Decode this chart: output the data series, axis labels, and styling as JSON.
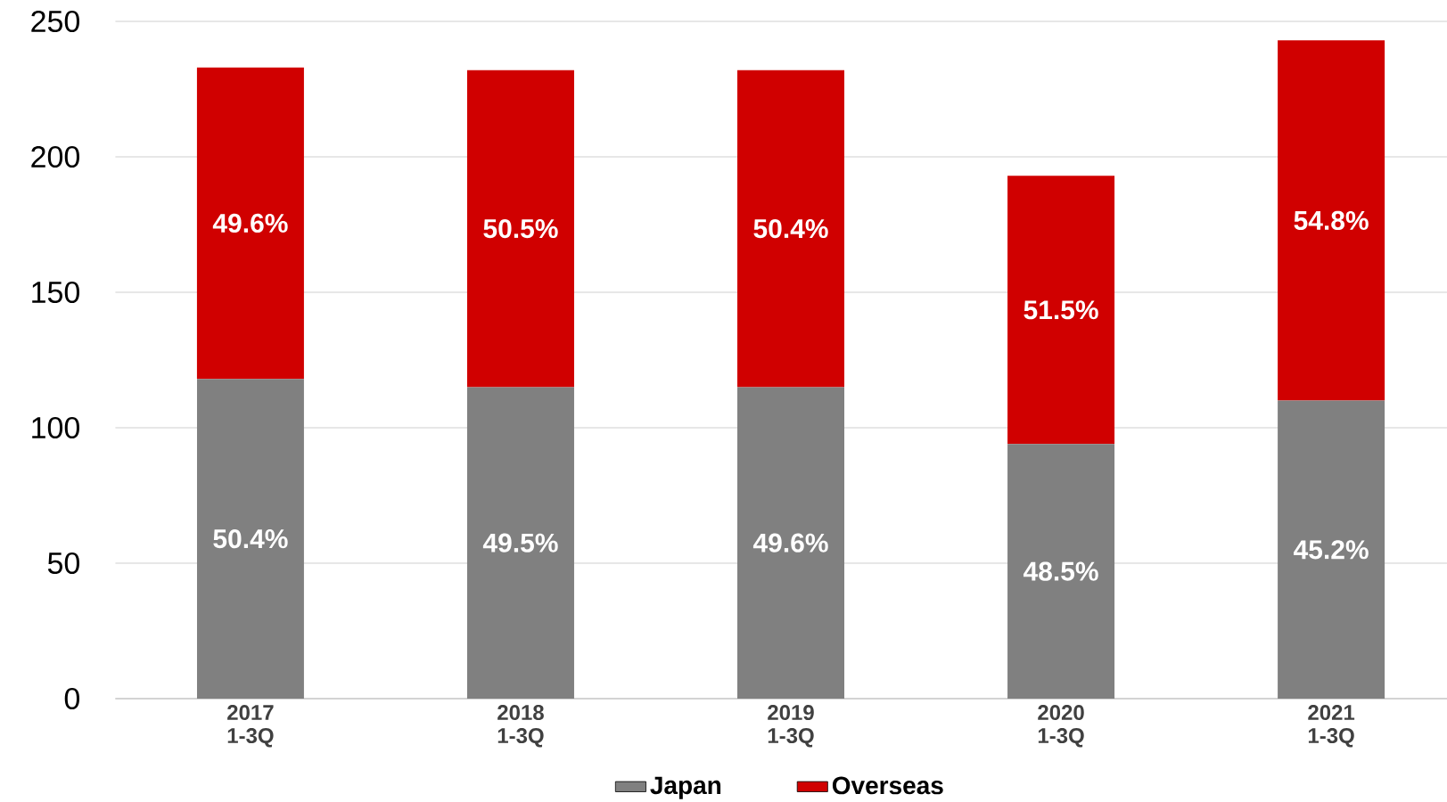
{
  "chart_data": {
    "type": "bar",
    "stacked": true,
    "categories": [
      "2017 1-3Q",
      "2018 1-3Q",
      "2019 1-3Q",
      "2020 1-3Q",
      "2021 1-3Q"
    ],
    "series": [
      {
        "name": "Japan",
        "color": "#808080",
        "values": [
          118,
          115,
          115,
          94,
          110
        ]
      },
      {
        "name": "Overseas",
        "color": "#d00000",
        "values": [
          115,
          117,
          117,
          99,
          133
        ]
      }
    ],
    "annotations": [
      "50.4%",
      "49.5%",
      "49.6%",
      "48.5%",
      "45.2%",
      "49.6%",
      "50.5%",
      "50.4%",
      "51.5%",
      "54.8%"
    ],
    "ylim": [
      0,
      250
    ],
    "yticks": [
      0,
      50,
      100,
      150,
      200,
      250
    ],
    "grid": "y",
    "legend": "bottom"
  }
}
